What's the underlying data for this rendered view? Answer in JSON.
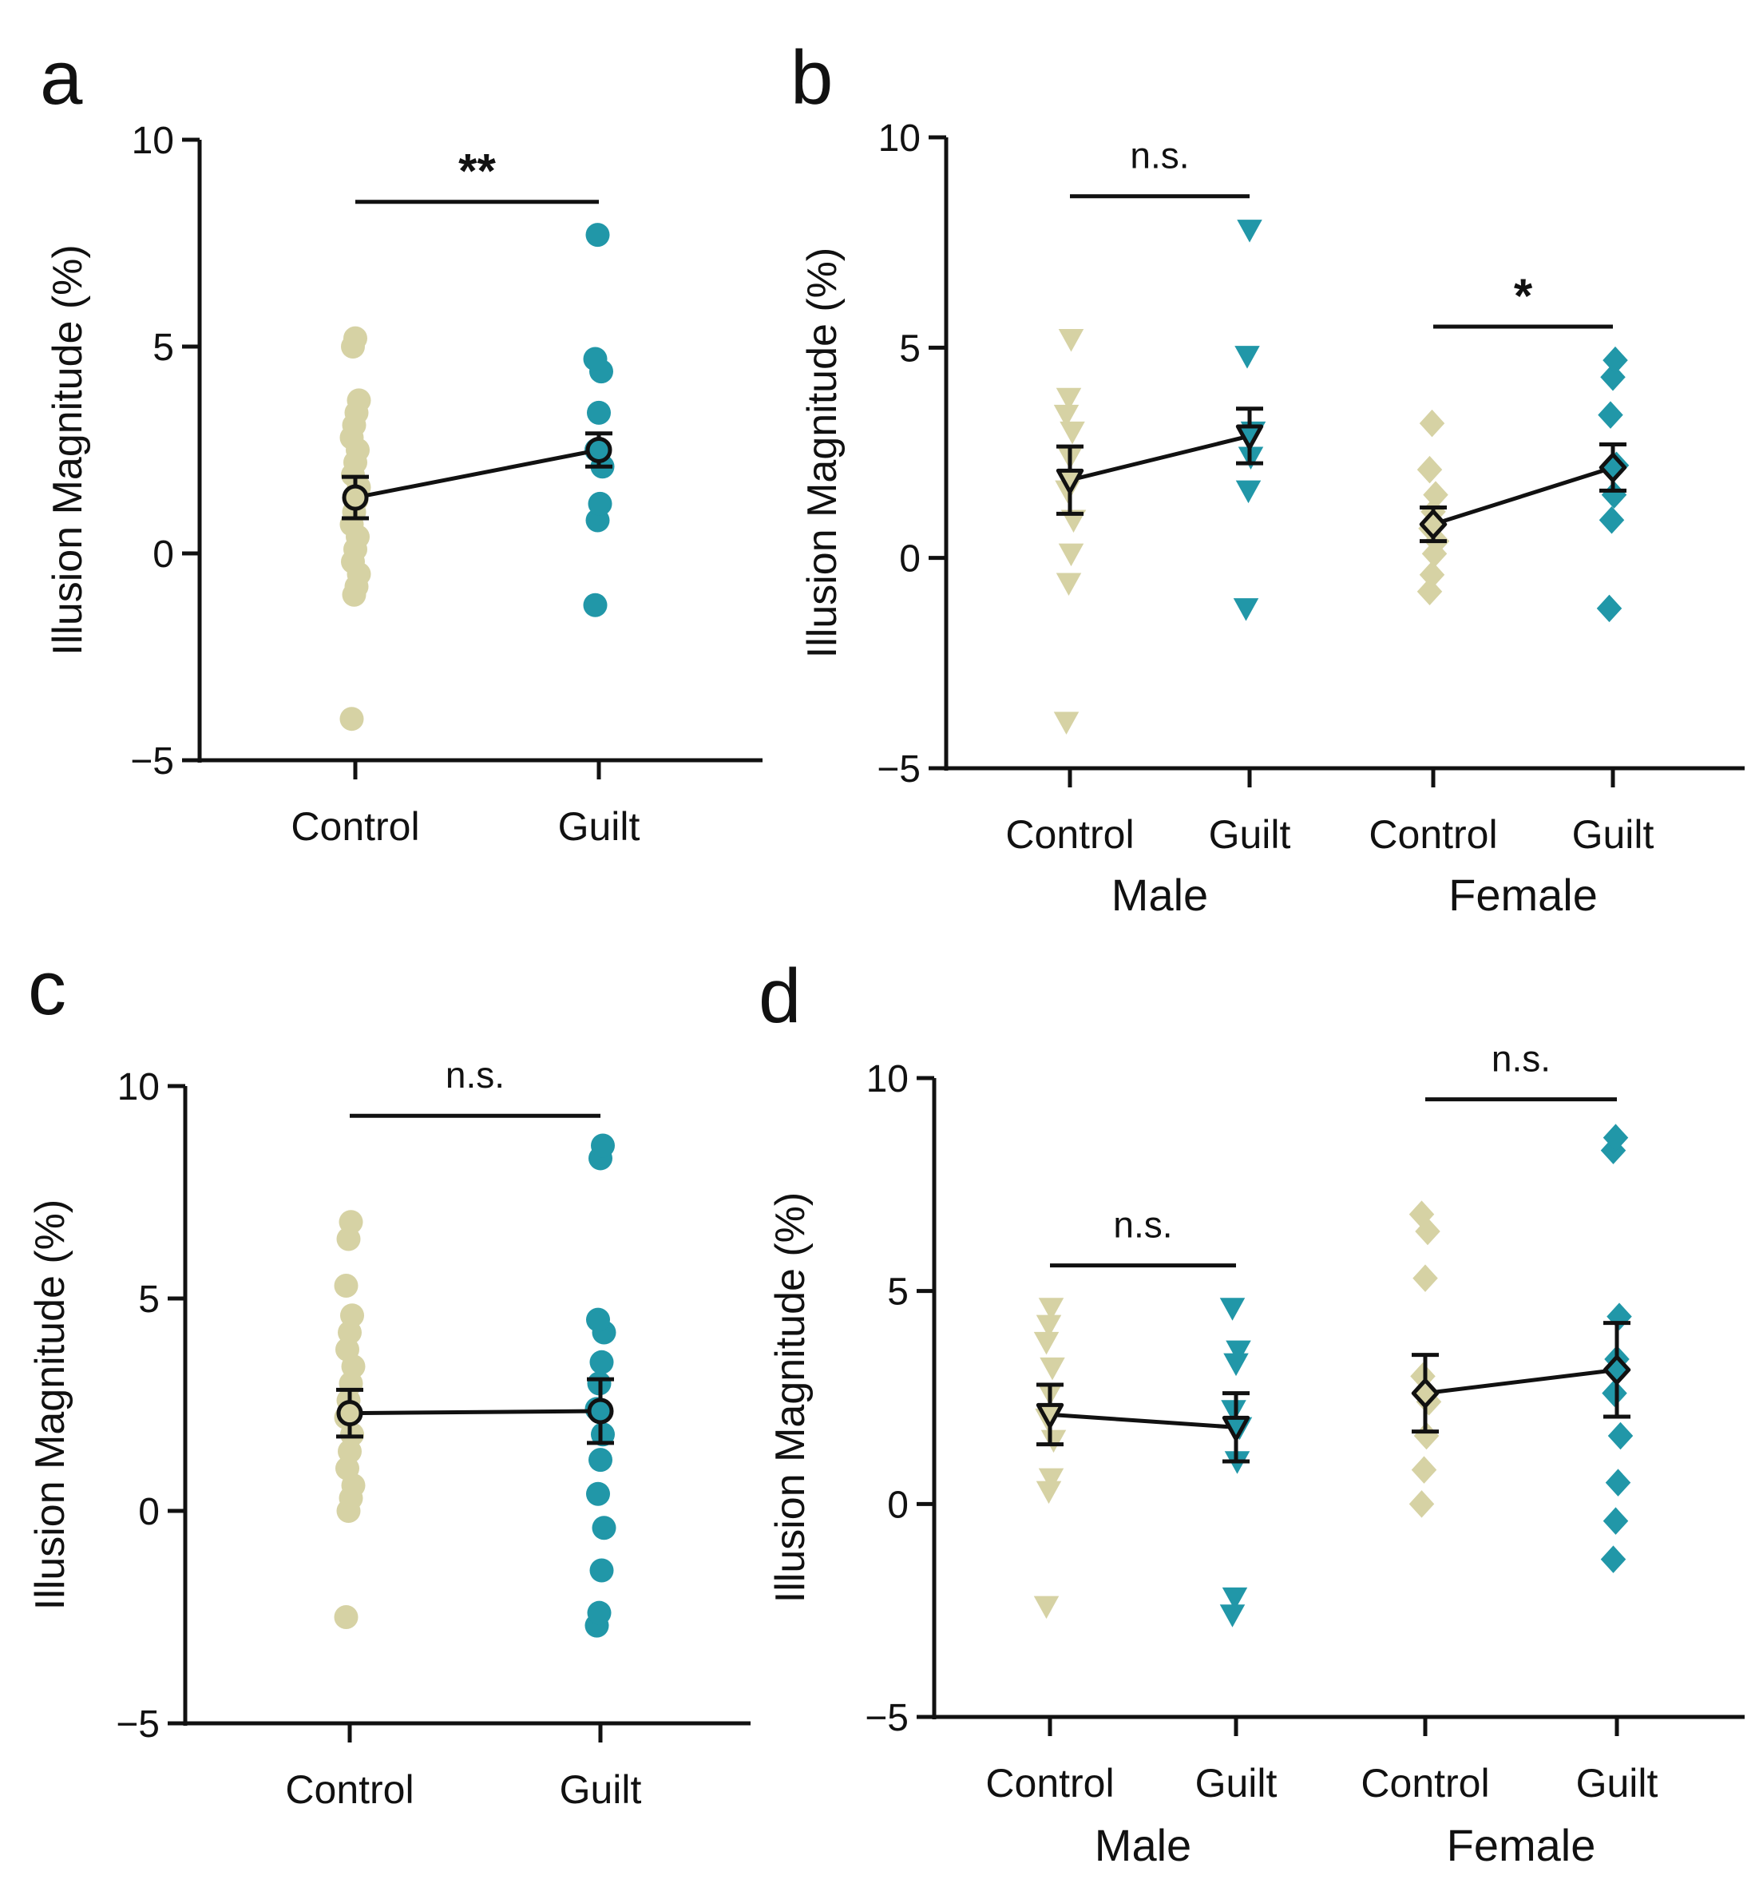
{
  "figure": {
    "colors": {
      "control": "#d6d2a4",
      "guilt": "#2197a8",
      "ink": "#111111"
    },
    "panels": [
      "a",
      "b",
      "c",
      "d"
    ]
  },
  "chart_data": [
    {
      "panel": "a",
      "type": "scatter",
      "ylabel": "Illusion Magnitude (%)",
      "ylim": [
        -5,
        10
      ],
      "yticks": [
        -5,
        0,
        5,
        10
      ],
      "yticklabels": [
        "−5",
        "0",
        "5",
        "10"
      ],
      "marker": "circle",
      "groups": [
        {
          "category": "Control",
          "sex": "",
          "color": "#d6d2a4",
          "points": [
            -4.0,
            -1.0,
            -0.8,
            -0.5,
            -0.2,
            0.1,
            0.4,
            0.7,
            1.0,
            1.3,
            1.6,
            1.9,
            2.2,
            2.5,
            2.8,
            3.1,
            3.4,
            3.7,
            5.0,
            5.2
          ],
          "mean": 1.35,
          "sem": 0.5
        },
        {
          "category": "Guilt",
          "sex": "",
          "color": "#2197a8",
          "points": [
            -1.25,
            0.8,
            1.2,
            2.1,
            2.5,
            3.4,
            4.4,
            4.7,
            7.7
          ],
          "mean": 2.5,
          "sem": 0.4
        }
      ],
      "comparisons": [
        {
          "from": 0,
          "to": 1,
          "y": 8.5,
          "label": "**"
        }
      ]
    },
    {
      "panel": "b",
      "type": "scatter",
      "ylabel": "Illusion Magnitude (%)",
      "ylim": [
        -5,
        10
      ],
      "yticks": [
        -5,
        0,
        5,
        10
      ],
      "yticklabels": [
        "−5",
        "0",
        "5",
        "10"
      ],
      "group_labels": [
        "Male",
        "Female"
      ],
      "groups": [
        {
          "category": "Control",
          "sex": "Male",
          "marker": "triangle",
          "color": "#d6d2a4",
          "points": [
            -3.9,
            -0.6,
            0.1,
            0.9,
            1.6,
            2.4,
            3.0,
            3.4,
            3.8,
            5.2
          ],
          "mean": 1.85,
          "sem": 0.8
        },
        {
          "category": "Guilt",
          "sex": "Male",
          "marker": "triangle",
          "color": "#2197a8",
          "points": [
            -1.2,
            1.6,
            2.4,
            3.0,
            4.8,
            7.8
          ],
          "mean": 2.9,
          "sem": 0.65
        },
        {
          "category": "Control",
          "sex": "Female",
          "marker": "diamond",
          "color": "#d6d2a4",
          "points": [
            -0.8,
            -0.4,
            0.1,
            0.4,
            0.7,
            1.1,
            1.5,
            2.1,
            3.2
          ],
          "mean": 0.8,
          "sem": 0.4
        },
        {
          "category": "Guilt",
          "sex": "Female",
          "marker": "diamond",
          "color": "#2197a8",
          "points": [
            -1.2,
            0.9,
            1.5,
            2.2,
            3.4,
            4.3,
            4.7
          ],
          "mean": 2.15,
          "sem": 0.55
        }
      ],
      "comparisons": [
        {
          "from": 0,
          "to": 1,
          "y": 8.6,
          "label": "n.s."
        },
        {
          "from": 2,
          "to": 3,
          "y": 5.5,
          "label": "*"
        }
      ]
    },
    {
      "panel": "c",
      "type": "scatter",
      "ylabel": "Illusion Magnitude (%)",
      "ylim": [
        -5,
        10
      ],
      "yticks": [
        -5,
        0,
        5,
        10
      ],
      "yticklabels": [
        "−5",
        "0",
        "5",
        "10"
      ],
      "marker": "circle",
      "groups": [
        {
          "category": "Control",
          "sex": "",
          "color": "#d6d2a4",
          "points": [
            -2.5,
            0.0,
            0.3,
            0.6,
            1.0,
            1.4,
            1.8,
            2.2,
            2.6,
            3.0,
            3.4,
            3.8,
            4.2,
            4.6,
            5.3,
            6.4,
            6.8
          ],
          "mean": 2.3,
          "sem": 0.55
        },
        {
          "category": "Guilt",
          "sex": "",
          "color": "#2197a8",
          "points": [
            -2.7,
            -2.4,
            -1.4,
            -0.4,
            0.4,
            1.2,
            1.8,
            2.4,
            3.0,
            3.5,
            4.2,
            4.5,
            8.3,
            8.6
          ],
          "mean": 2.35,
          "sem": 0.75
        }
      ],
      "comparisons": [
        {
          "from": 0,
          "to": 1,
          "y": 9.3,
          "label": "n.s."
        }
      ]
    },
    {
      "panel": "d",
      "type": "scatter",
      "ylabel": "Illusion Magnitude (%)",
      "ylim": [
        -5,
        10
      ],
      "yticks": [
        -5,
        0,
        5,
        10
      ],
      "yticklabels": [
        "−5",
        "0",
        "5",
        "10"
      ],
      "group_labels": [
        "Male",
        "Female"
      ],
      "groups": [
        {
          "category": "Control",
          "sex": "Male",
          "marker": "triangle",
          "color": "#d6d2a4",
          "points": [
            -2.4,
            0.3,
            0.6,
            1.5,
            2.0,
            2.6,
            3.2,
            3.8,
            4.2,
            4.6
          ],
          "mean": 2.1,
          "sem": 0.7
        },
        {
          "category": "Guilt",
          "sex": "Male",
          "marker": "triangle",
          "color": "#2197a8",
          "points": [
            -2.6,
            -2.2,
            1.0,
            1.8,
            2.2,
            3.3,
            3.6,
            4.6
          ],
          "mean": 1.8,
          "sem": 0.8
        },
        {
          "category": "Control",
          "sex": "Female",
          "marker": "diamond",
          "color": "#d6d2a4",
          "points": [
            0.0,
            0.8,
            1.6,
            2.4,
            3.0,
            5.3,
            6.4,
            6.8
          ],
          "mean": 2.6,
          "sem": 0.9
        },
        {
          "category": "Guilt",
          "sex": "Female",
          "marker": "diamond",
          "color": "#2197a8",
          "points": [
            -1.3,
            -0.4,
            0.5,
            1.6,
            2.6,
            3.4,
            4.4,
            8.3,
            8.6
          ],
          "mean": 3.15,
          "sem": 1.1
        }
      ],
      "comparisons": [
        {
          "from": 0,
          "to": 1,
          "y": 5.6,
          "label": "n.s."
        },
        {
          "from": 2,
          "to": 3,
          "y": 9.5,
          "label": "n.s."
        }
      ]
    }
  ]
}
